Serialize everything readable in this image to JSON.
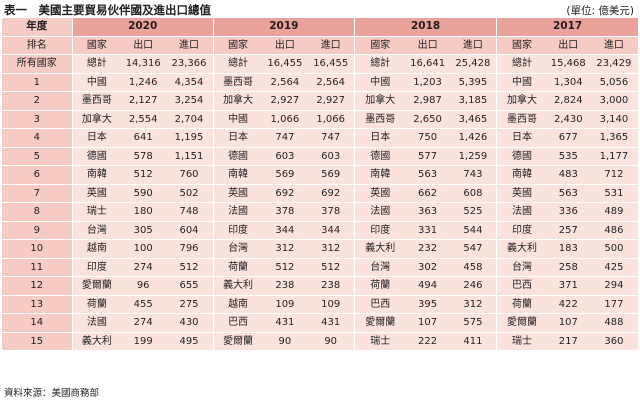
{
  "title": "表一　美國主要貿易伙伴國及進出口總值",
  "unit": "(單位: 億美元)",
  "header": {
    "year_label": "年度",
    "rank_label": "排名",
    "country_label": "國家",
    "export_label": "出口",
    "import_label": "進口",
    "years": [
      "2020",
      "2019",
      "2018",
      "2017"
    ]
  },
  "rows": [
    {
      "rank": "所有國家",
      "y": [
        [
          "總計",
          "14,316",
          "23,366"
        ],
        [
          "總計",
          "16,455",
          "16,455"
        ],
        [
          "總計",
          "16,641",
          "25,428"
        ],
        [
          "總計",
          "15,468",
          "23,429"
        ]
      ]
    },
    {
      "rank": "1",
      "y": [
        [
          "中國",
          "1,246",
          "4,354"
        ],
        [
          "墨西哥",
          "2,564",
          "2,564"
        ],
        [
          "中國",
          "1,203",
          "5,395"
        ],
        [
          "中國",
          "1,304",
          "5,056"
        ]
      ]
    },
    {
      "rank": "2",
      "y": [
        [
          "墨西哥",
          "2,127",
          "3,254"
        ],
        [
          "加拿大",
          "2,927",
          "2,927"
        ],
        [
          "加拿大",
          "2,987",
          "3,185"
        ],
        [
          "加拿大",
          "2,824",
          "3,000"
        ]
      ]
    },
    {
      "rank": "3",
      "y": [
        [
          "加拿大",
          "2,554",
          "2,704"
        ],
        [
          "中國",
          "1,066",
          "1,066"
        ],
        [
          "墨西哥",
          "2,650",
          "3,465"
        ],
        [
          "墨西哥",
          "2,430",
          "3,140"
        ]
      ]
    },
    {
      "rank": "4",
      "y": [
        [
          "日本",
          "641",
          "1,195"
        ],
        [
          "日本",
          "747",
          "747"
        ],
        [
          "日本",
          "750",
          "1,426"
        ],
        [
          "日本",
          "677",
          "1,365"
        ]
      ]
    },
    {
      "rank": "5",
      "y": [
        [
          "德國",
          "578",
          "1,151"
        ],
        [
          "德國",
          "603",
          "603"
        ],
        [
          "德國",
          "577",
          "1,259"
        ],
        [
          "德國",
          "535",
          "1,177"
        ]
      ]
    },
    {
      "rank": "6",
      "y": [
        [
          "南韓",
          "512",
          "760"
        ],
        [
          "南韓",
          "569",
          "569"
        ],
        [
          "南韓",
          "563",
          "743"
        ],
        [
          "南韓",
          "483",
          "712"
        ]
      ]
    },
    {
      "rank": "7",
      "y": [
        [
          "英國",
          "590",
          "502"
        ],
        [
          "英國",
          "692",
          "692"
        ],
        [
          "英國",
          "662",
          "608"
        ],
        [
          "英國",
          "563",
          "531"
        ]
      ]
    },
    {
      "rank": "8",
      "y": [
        [
          "瑞士",
          "180",
          "748"
        ],
        [
          "法國",
          "378",
          "378"
        ],
        [
          "法國",
          "363",
          "525"
        ],
        [
          "法國",
          "336",
          "489"
        ]
      ]
    },
    {
      "rank": "9",
      "y": [
        [
          "台灣",
          "305",
          "604"
        ],
        [
          "印度",
          "344",
          "344"
        ],
        [
          "印度",
          "331",
          "544"
        ],
        [
          "印度",
          "257",
          "486"
        ]
      ]
    },
    {
      "rank": "10",
      "y": [
        [
          "越南",
          "100",
          "796"
        ],
        [
          "台灣",
          "312",
          "312"
        ],
        [
          "義大利",
          "232",
          "547"
        ],
        [
          "義大利",
          "183",
          "500"
        ]
      ]
    },
    {
      "rank": "11",
      "y": [
        [
          "印度",
          "274",
          "512"
        ],
        [
          "荷蘭",
          "512",
          "512"
        ],
        [
          "台灣",
          "302",
          "458"
        ],
        [
          "台灣",
          "258",
          "425"
        ]
      ]
    },
    {
      "rank": "12",
      "y": [
        [
          "愛爾蘭",
          "96",
          "655"
        ],
        [
          "義大利",
          "238",
          "238"
        ],
        [
          "荷蘭",
          "494",
          "246"
        ],
        [
          "巴西",
          "371",
          "294"
        ]
      ]
    },
    {
      "rank": "13",
      "y": [
        [
          "荷蘭",
          "455",
          "275"
        ],
        [
          "越南",
          "109",
          "109"
        ],
        [
          "巴西",
          "395",
          "312"
        ],
        [
          "荷蘭",
          "422",
          "177"
        ]
      ]
    },
    {
      "rank": "14",
      "y": [
        [
          "法國",
          "274",
          "430"
        ],
        [
          "巴西",
          "431",
          "431"
        ],
        [
          "愛爾蘭",
          "107",
          "575"
        ],
        [
          "愛爾蘭",
          "107",
          "488"
        ]
      ]
    },
    {
      "rank": "15",
      "y": [
        [
          "義大利",
          "199",
          "495"
        ],
        [
          "愛爾蘭",
          "90",
          "90"
        ],
        [
          "瑞士",
          "222",
          "411"
        ],
        [
          "瑞士",
          "217",
          "360"
        ]
      ]
    }
  ],
  "source": "資料來源：美國商務部",
  "colors": {
    "header_bg": "#e9a39a",
    "subheader_bg": "#f5cbc3",
    "body_bg": "#fbe3dd",
    "rank_bg": "#f5cbc3"
  }
}
